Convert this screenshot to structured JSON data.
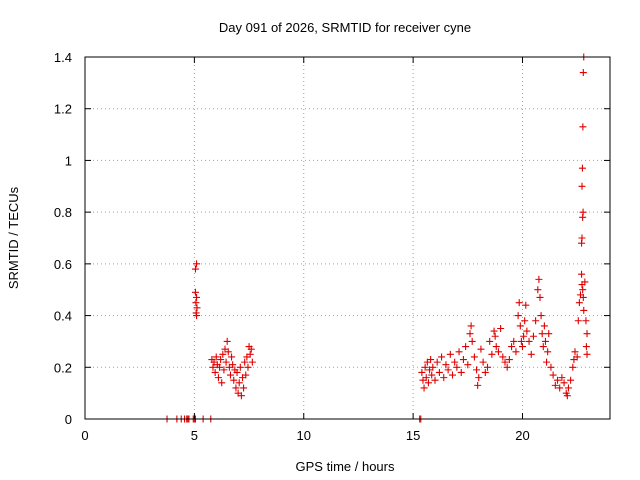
{
  "chart_data": {
    "type": "scatter",
    "title": "Day 091 of 2026, SRMTID for receiver cyne",
    "xlabel": "GPS time / hours",
    "ylabel": "SRMTID / TECUs",
    "xlim": [
      0,
      24
    ],
    "ylim": [
      0,
      1.4
    ],
    "x_ticks": [
      0,
      5,
      10,
      15,
      20
    ],
    "y_ticks": [
      0,
      0.2,
      0.4,
      0.6,
      0.8,
      1,
      1.2,
      1.4
    ],
    "x_tick_labels": [
      "0",
      "5",
      "10",
      "15",
      "20"
    ],
    "y_tick_labels": [
      "0",
      "0.2",
      "0.4",
      "0.6",
      "0.8",
      "1",
      "1.2",
      "1.4"
    ],
    "grid": true,
    "marker": "+",
    "color": "#e00000",
    "series": [
      {
        "name": "SRMTID",
        "points": [
          [
            3.75,
            0
          ],
          [
            4.2,
            0
          ],
          [
            4.4,
            0
          ],
          [
            4.55,
            0
          ],
          [
            4.65,
            0
          ],
          [
            4.7,
            0
          ],
          [
            4.75,
            0
          ],
          [
            4.95,
            0
          ],
          [
            5.0,
            0
          ],
          [
            5.05,
            0
          ],
          [
            5.4,
            0
          ],
          [
            5.75,
            0
          ],
          [
            5.05,
            0.58
          ],
          [
            5.1,
            0.6
          ],
          [
            5.05,
            0.49
          ],
          [
            5.1,
            0.47
          ],
          [
            5.07,
            0.45
          ],
          [
            5.12,
            0.43
          ],
          [
            5.08,
            0.41
          ],
          [
            5.1,
            0.4
          ],
          [
            5.8,
            0.23
          ],
          [
            5.85,
            0.2
          ],
          [
            5.9,
            0.22
          ],
          [
            5.95,
            0.18
          ],
          [
            6.0,
            0.24
          ],
          [
            6.05,
            0.21
          ],
          [
            6.1,
            0.16
          ],
          [
            6.15,
            0.2
          ],
          [
            6.2,
            0.23
          ],
          [
            6.25,
            0.14
          ],
          [
            6.3,
            0.25
          ],
          [
            6.35,
            0.19
          ],
          [
            6.4,
            0.27
          ],
          [
            6.45,
            0.22
          ],
          [
            6.5,
            0.3
          ],
          [
            6.55,
            0.26
          ],
          [
            6.6,
            0.2
          ],
          [
            6.65,
            0.17
          ],
          [
            6.7,
            0.24
          ],
          [
            6.75,
            0.21
          ],
          [
            6.8,
            0.15
          ],
          [
            6.85,
            0.19
          ],
          [
            6.9,
            0.12
          ],
          [
            6.95,
            0.18
          ],
          [
            7.0,
            0.1
          ],
          [
            7.05,
            0.14
          ],
          [
            7.1,
            0.2
          ],
          [
            7.15,
            0.09
          ],
          [
            7.2,
            0.16
          ],
          [
            7.25,
            0.12
          ],
          [
            7.3,
            0.22
          ],
          [
            7.35,
            0.17
          ],
          [
            7.4,
            0.24
          ],
          [
            7.45,
            0.2
          ],
          [
            7.5,
            0.28
          ],
          [
            7.55,
            0.25
          ],
          [
            7.6,
            0.27
          ],
          [
            7.65,
            0.22
          ],
          [
            15.3,
            0
          ],
          [
            15.35,
            0
          ],
          [
            15.4,
            0.18
          ],
          [
            15.45,
            0.15
          ],
          [
            15.5,
            0.12
          ],
          [
            15.55,
            0.2
          ],
          [
            15.6,
            0.16
          ],
          [
            15.65,
            0.22
          ],
          [
            15.7,
            0.14
          ],
          [
            15.75,
            0.19
          ],
          [
            15.8,
            0.23
          ],
          [
            15.85,
            0.17
          ],
          [
            15.9,
            0.2
          ],
          [
            16.0,
            0.15
          ],
          [
            16.1,
            0.22
          ],
          [
            16.2,
            0.18
          ],
          [
            16.3,
            0.24
          ],
          [
            16.4,
            0.16
          ],
          [
            16.5,
            0.21
          ],
          [
            16.6,
            0.19
          ],
          [
            16.7,
            0.25
          ],
          [
            16.8,
            0.17
          ],
          [
            16.9,
            0.22
          ],
          [
            17.0,
            0.2
          ],
          [
            17.1,
            0.26
          ],
          [
            17.2,
            0.18
          ],
          [
            17.3,
            0.23
          ],
          [
            17.4,
            0.28
          ],
          [
            17.5,
            0.21
          ],
          [
            17.6,
            0.33
          ],
          [
            17.65,
            0.36
          ],
          [
            17.7,
            0.3
          ],
          [
            17.8,
            0.24
          ],
          [
            17.9,
            0.19
          ],
          [
            17.95,
            0.13
          ],
          [
            18.0,
            0.16
          ],
          [
            18.1,
            0.27
          ],
          [
            18.2,
            0.22
          ],
          [
            18.3,
            0.18
          ],
          [
            18.4,
            0.2
          ],
          [
            18.5,
            0.3
          ],
          [
            18.6,
            0.25
          ],
          [
            18.7,
            0.34
          ],
          [
            18.75,
            0.32
          ],
          [
            18.8,
            0.28
          ],
          [
            18.9,
            0.26
          ],
          [
            19.0,
            0.35
          ],
          [
            19.1,
            0.24
          ],
          [
            19.2,
            0.22
          ],
          [
            19.3,
            0.2
          ],
          [
            19.4,
            0.23
          ],
          [
            19.5,
            0.28
          ],
          [
            19.6,
            0.3
          ],
          [
            19.7,
            0.26
          ],
          [
            19.8,
            0.4
          ],
          [
            19.85,
            0.45
          ],
          [
            19.9,
            0.36
          ],
          [
            19.95,
            0.3
          ],
          [
            20.0,
            0.28
          ],
          [
            20.05,
            0.32
          ],
          [
            20.1,
            0.38
          ],
          [
            20.15,
            0.44
          ],
          [
            20.2,
            0.34
          ],
          [
            20.3,
            0.3
          ],
          [
            20.4,
            0.25
          ],
          [
            20.5,
            0.32
          ],
          [
            20.6,
            0.38
          ],
          [
            20.7,
            0.5
          ],
          [
            20.75,
            0.54
          ],
          [
            20.8,
            0.47
          ],
          [
            20.85,
            0.4
          ],
          [
            20.9,
            0.33
          ],
          [
            20.95,
            0.28
          ],
          [
            21.0,
            0.36
          ],
          [
            21.05,
            0.3
          ],
          [
            21.1,
            0.22
          ],
          [
            21.15,
            0.26
          ],
          [
            21.2,
            0.33
          ],
          [
            21.3,
            0.2
          ],
          [
            21.4,
            0.17
          ],
          [
            21.5,
            0.13
          ],
          [
            21.6,
            0.15
          ],
          [
            21.7,
            0.12
          ],
          [
            21.8,
            0.16
          ],
          [
            21.9,
            0.14
          ],
          [
            22.0,
            0.1
          ],
          [
            22.05,
            0.09
          ],
          [
            22.1,
            0.12
          ],
          [
            22.2,
            0.15
          ],
          [
            22.3,
            0.2
          ],
          [
            22.35,
            0.23
          ],
          [
            22.4,
            0.26
          ],
          [
            22.5,
            0.24
          ],
          [
            22.55,
            0.38
          ],
          [
            22.6,
            0.45
          ],
          [
            22.65,
            0.48
          ],
          [
            22.7,
            0.56
          ],
          [
            22.72,
            0.52
          ],
          [
            22.75,
            0.5
          ],
          [
            22.78,
            0.47
          ],
          [
            22.8,
            0.42
          ],
          [
            22.85,
            0.53
          ],
          [
            22.7,
            0.68
          ],
          [
            22.72,
            0.7
          ],
          [
            22.75,
            0.78
          ],
          [
            22.77,
            0.8
          ],
          [
            22.72,
            0.9
          ],
          [
            22.74,
            0.97
          ],
          [
            22.76,
            1.13
          ],
          [
            22.78,
            1.34
          ],
          [
            22.8,
            1.4
          ],
          [
            22.9,
            0.38
          ],
          [
            22.95,
            0.33
          ],
          [
            22.92,
            0.28
          ],
          [
            22.95,
            0.25
          ]
        ]
      }
    ]
  }
}
